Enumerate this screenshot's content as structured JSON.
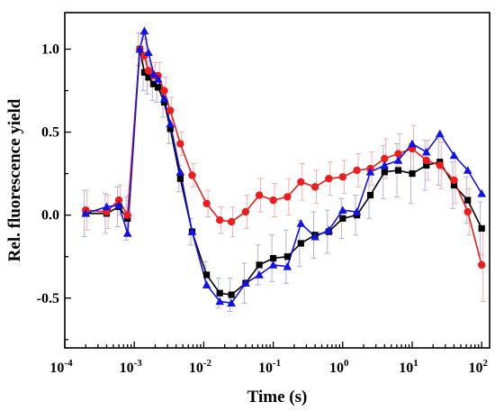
{
  "chart_data": {
    "type": "line",
    "title": "",
    "xlabel": "Time (s)",
    "ylabel": "Rel. fluorescence yield",
    "x_scale": "log",
    "xlim": [
      0.0001,
      130
    ],
    "ylim": [
      -0.8,
      1.22
    ],
    "x_ticks": [
      {
        "value": 0.0001,
        "base": "10",
        "exp": "-4"
      },
      {
        "value": 0.001,
        "base": "10",
        "exp": "-3"
      },
      {
        "value": 0.01,
        "base": "10",
        "exp": "-2"
      },
      {
        "value": 0.1,
        "base": "10",
        "exp": "-1"
      },
      {
        "value": 1,
        "base": "10",
        "exp": "0"
      },
      {
        "value": 10,
        "base": "10",
        "exp": "1"
      },
      {
        "value": 100,
        "base": "10",
        "exp": "2"
      }
    ],
    "y_ticks": [
      {
        "value": -0.5,
        "label": "-0.5"
      },
      {
        "value": 0.0,
        "label": "0.0"
      },
      {
        "value": 0.5,
        "label": "0.5"
      },
      {
        "value": 1.0,
        "label": "1.0"
      }
    ],
    "grid": false,
    "legend": "none",
    "series": [
      {
        "color": "#000000",
        "marker": "square",
        "x": [
          0.0002,
          0.0004,
          0.0006,
          0.0008,
          0.0012,
          0.0014,
          0.0016,
          0.0019,
          0.0022,
          0.0027,
          0.0033,
          0.0046,
          0.0068,
          0.011,
          0.017,
          0.025,
          0.04,
          0.063,
          0.1,
          0.16,
          0.25,
          0.4,
          0.63,
          1.0,
          1.6,
          2.5,
          4.0,
          6.3,
          10,
          16,
          25,
          40,
          63,
          100
        ],
        "y": [
          0.01,
          0.01,
          0.05,
          -0.02,
          1.0,
          0.86,
          0.83,
          0.79,
          0.77,
          0.68,
          0.52,
          0.22,
          -0.1,
          -0.36,
          -0.47,
          -0.48,
          -0.41,
          -0.3,
          -0.26,
          -0.25,
          -0.17,
          -0.12,
          -0.1,
          -0.02,
          0.0,
          0.12,
          0.26,
          0.27,
          0.25,
          0.3,
          0.32,
          0.18,
          0.09,
          -0.08
        ]
      },
      {
        "color": "#ee1c1c",
        "marker": "circle",
        "x": [
          0.0002,
          0.0004,
          0.0006,
          0.0008,
          0.0012,
          0.0014,
          0.0016,
          0.0019,
          0.0022,
          0.0027,
          0.0033,
          0.0046,
          0.0068,
          0.011,
          0.017,
          0.025,
          0.04,
          0.063,
          0.1,
          0.16,
          0.25,
          0.4,
          0.63,
          1.0,
          1.6,
          2.5,
          4.0,
          6.3,
          10,
          16,
          25,
          40,
          63,
          100
        ],
        "y": [
          0.03,
          0.02,
          0.09,
          0.0,
          1.0,
          0.96,
          0.87,
          0.84,
          0.84,
          0.75,
          0.63,
          0.43,
          0.24,
          0.07,
          -0.03,
          -0.04,
          0.02,
          0.12,
          0.09,
          0.11,
          0.2,
          0.17,
          0.22,
          0.23,
          0.27,
          0.28,
          0.34,
          0.37,
          0.4,
          0.33,
          0.3,
          0.21,
          0.02,
          -0.3
        ]
      },
      {
        "color": "#1212e6",
        "marker": "triangle",
        "x": [
          0.0002,
          0.0004,
          0.0006,
          0.0008,
          0.0012,
          0.0014,
          0.0016,
          0.0019,
          0.0022,
          0.0027,
          0.0033,
          0.0046,
          0.0068,
          0.011,
          0.017,
          0.025,
          0.04,
          0.063,
          0.1,
          0.16,
          0.25,
          0.4,
          0.63,
          1.0,
          1.6,
          2.5,
          4.0,
          6.3,
          10,
          16,
          25,
          40,
          63,
          100
        ],
        "y": [
          0.01,
          0.05,
          0.06,
          -0.11,
          1.0,
          1.11,
          0.98,
          0.85,
          0.82,
          0.7,
          0.55,
          0.26,
          -0.1,
          -0.42,
          -0.52,
          -0.53,
          -0.41,
          -0.36,
          -0.3,
          -0.31,
          -0.05,
          -0.13,
          -0.09,
          0.03,
          0.02,
          0.26,
          0.3,
          0.33,
          0.43,
          0.38,
          0.49,
          0.36,
          0.27,
          0.13
        ]
      }
    ],
    "error_bars": [
      {
        "color": "#a9a9d6",
        "yerr": [
          0.14,
          0.12,
          0.12,
          0.13,
          0.1,
          0.11,
          0.1,
          0.1,
          0.09,
          0.09,
          0.09,
          0.08,
          0.08,
          0.08,
          0.09,
          0.1,
          0.12,
          0.12,
          0.14,
          0.16,
          0.14,
          0.14,
          0.13,
          0.12,
          0.12,
          0.14,
          0.16,
          0.16,
          0.18,
          0.15,
          0.14,
          0.14,
          0.14,
          0.16
        ]
      },
      {
        "color": "#f1a7a7",
        "yerr": [
          0.12,
          0.1,
          0.09,
          0.12,
          0.09,
          0.1,
          0.09,
          0.08,
          0.08,
          0.08,
          0.08,
          0.07,
          0.07,
          0.08,
          0.08,
          0.09,
          0.1,
          0.1,
          0.1,
          0.11,
          0.11,
          0.1,
          0.1,
          0.1,
          0.1,
          0.1,
          0.12,
          0.12,
          0.14,
          0.12,
          0.14,
          0.14,
          0.14,
          0.22
        ]
      }
    ]
  }
}
